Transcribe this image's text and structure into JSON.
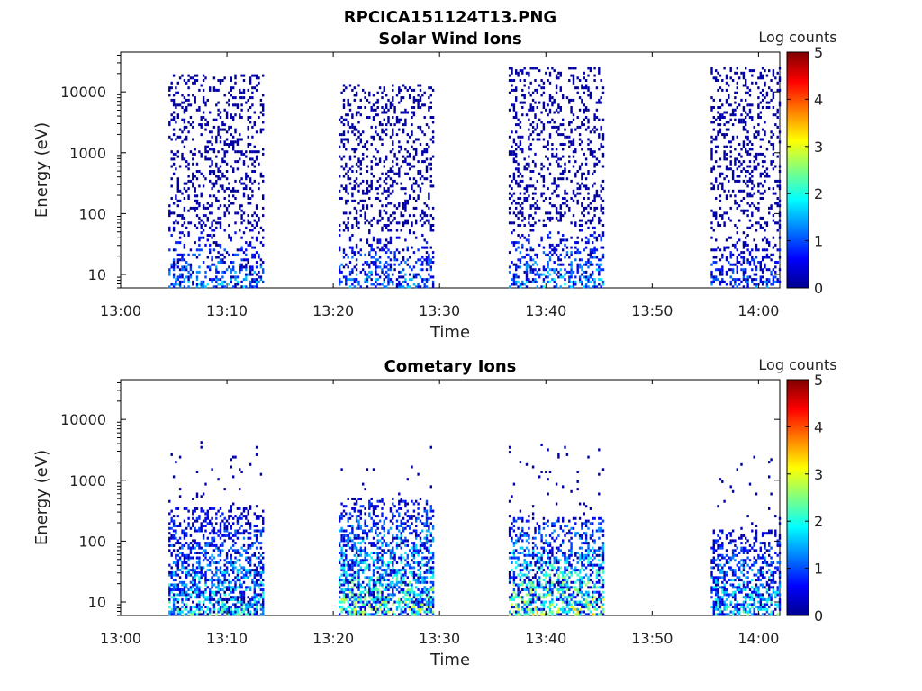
{
  "figure": {
    "title": "RPCICA151124T13.PNG"
  },
  "chart_data": [
    {
      "type": "heatmap",
      "title": "Solar Wind Ions",
      "xlabel": "Time",
      "ylabel": "Energy (eV)",
      "x_range": [
        "13:00",
        "14:02"
      ],
      "x_ticks": [
        "13:00",
        "13:10",
        "13:20",
        "13:30",
        "13:40",
        "13:50",
        "14:00"
      ],
      "y_range": [
        6,
        45000
      ],
      "y_scale": "log",
      "y_ticks": [
        10,
        100,
        1000,
        10000
      ],
      "y_tick_labels": [
        "10",
        "100",
        "1000",
        "10000"
      ],
      "colorbar": {
        "label": "Log counts",
        "min": 0,
        "max": 5,
        "ticks": [
          "0",
          "1",
          "2",
          "3",
          "4",
          "5"
        ],
        "colormap": "jet"
      },
      "grid": false,
      "data_blocks": [
        {
          "t_start": "13:04.5",
          "t_end": "13:13.5",
          "sparse_high_energy_max_eV": 20000,
          "dense_low_energy_max_eV": 60,
          "peak_log_counts": 2.0
        },
        {
          "t_start": "13:20.5",
          "t_end": "13:29.5",
          "sparse_high_energy_max_eV": 14000,
          "dense_low_energy_max_eV": 50,
          "peak_log_counts": 2.0
        },
        {
          "t_start": "13:36.5",
          "t_end": "13:45.5",
          "sparse_high_energy_max_eV": 25000,
          "dense_low_energy_max_eV": 60,
          "peak_log_counts": 2.2
        },
        {
          "t_start": "13:55.5",
          "t_end": "14:02",
          "sparse_high_energy_max_eV": 25000,
          "dense_low_energy_max_eV": 50,
          "peak_log_counts": 1.5
        }
      ]
    },
    {
      "type": "heatmap",
      "title": "Cometary Ions",
      "xlabel": "Time",
      "ylabel": "Energy (eV)",
      "x_range": [
        "13:00",
        "14:02"
      ],
      "x_ticks": [
        "13:00",
        "13:10",
        "13:20",
        "13:30",
        "13:40",
        "13:50",
        "14:00"
      ],
      "y_range": [
        6,
        45000
      ],
      "y_scale": "log",
      "y_ticks": [
        10,
        100,
        1000,
        10000
      ],
      "y_tick_labels": [
        "10",
        "100",
        "1000",
        "10000"
      ],
      "colorbar": {
        "label": "Log counts",
        "min": 0,
        "max": 5,
        "ticks": [
          "0",
          "1",
          "2",
          "3",
          "4",
          "5"
        ],
        "colormap": "jet"
      },
      "grid": false,
      "data_blocks": [
        {
          "t_start": "13:04.5",
          "t_end": "13:13.5",
          "sparse_high_energy_max_eV": 4500,
          "dense_low_energy_max_eV": 350,
          "peak_log_counts": 2.6
        },
        {
          "t_start": "13:20.5",
          "t_end": "13:29.5",
          "sparse_high_energy_max_eV": 3800,
          "dense_low_energy_max_eV": 500,
          "peak_log_counts": 3.2
        },
        {
          "t_start": "13:36.5",
          "t_end": "13:45.5",
          "sparse_high_energy_max_eV": 4200,
          "dense_low_energy_max_eV": 250,
          "peak_log_counts": 3.6
        },
        {
          "t_start": "13:55.5",
          "t_end": "14:02",
          "sparse_high_energy_max_eV": 2700,
          "dense_low_energy_max_eV": 150,
          "peak_log_counts": 2.6
        }
      ]
    }
  ]
}
